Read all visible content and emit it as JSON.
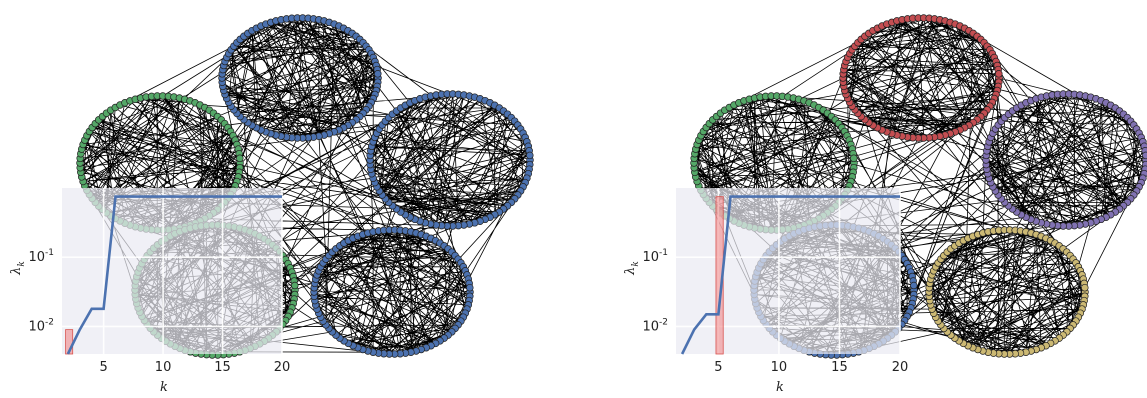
{
  "figure": {
    "panels": [
      {
        "clusters": [
          {
            "color": "#55a868"
          },
          {
            "color": "#4c72b0"
          },
          {
            "color": "#4c72b0"
          },
          {
            "color": "#55a868"
          },
          {
            "color": "#4c72b0"
          }
        ],
        "inset": {
          "xlabel": "k",
          "ylabel": "λk",
          "x_ticks": [
            "5",
            "10",
            "15",
            "20"
          ],
          "y_ticks": [
            "10-1",
            "10-2"
          ],
          "line_color": "#4c72b0",
          "highlight_color": "#f08080",
          "highlight_k": [
            2,
            3
          ]
        }
      },
      {
        "clusters": [
          {
            "color": "#55a868"
          },
          {
            "color": "#c44e52"
          },
          {
            "color": "#8172b2"
          },
          {
            "color": "#4c72b0"
          },
          {
            "color": "#ccb974"
          }
        ],
        "inset": {
          "xlabel": "k",
          "ylabel": "λk",
          "x_ticks": [
            "5",
            "10",
            "15",
            "20"
          ],
          "y_ticks": [
            "10-1",
            "10-2"
          ],
          "line_color": "#4c72b0",
          "highlight_color": "#f08080",
          "highlight_k": [
            5,
            6
          ]
        }
      }
    ]
  },
  "chart_data": [
    {
      "type": "line",
      "xlabel": "k",
      "ylabel": "λk",
      "y_scale": "log",
      "x": [
        2,
        3,
        4,
        5,
        6,
        7,
        8,
        9,
        10,
        11,
        12,
        13,
        14,
        15,
        16,
        17,
        18,
        19,
        20
      ],
      "series": [
        {
          "values": [
            0.004,
            0.009,
            0.018,
            0.018,
            0.75,
            0.75,
            0.75,
            0.75,
            0.75,
            0.75,
            0.75,
            0.75,
            0.75,
            0.75,
            0.75,
            0.75,
            0.75,
            0.75,
            0.75
          ]
        }
      ],
      "xlim": [
        1.5,
        20
      ],
      "ylim": [
        0.004,
        1.0
      ],
      "grid": true
    },
    {
      "type": "line",
      "xlabel": "k",
      "ylabel": "λk",
      "y_scale": "log",
      "x": [
        2,
        3,
        4,
        5,
        6,
        7,
        8,
        9,
        10,
        11,
        12,
        13,
        14,
        15,
        16,
        17,
        18,
        19,
        20
      ],
      "series": [
        {
          "values": [
            0.004,
            0.009,
            0.015,
            0.015,
            0.75,
            0.75,
            0.75,
            0.75,
            0.75,
            0.75,
            0.75,
            0.75,
            0.75,
            0.75,
            0.75,
            0.75,
            0.75,
            0.75,
            0.75
          ]
        }
      ],
      "xlim": [
        1.5,
        20
      ],
      "ylim": [
        0.004,
        1.0
      ],
      "grid": true
    }
  ]
}
